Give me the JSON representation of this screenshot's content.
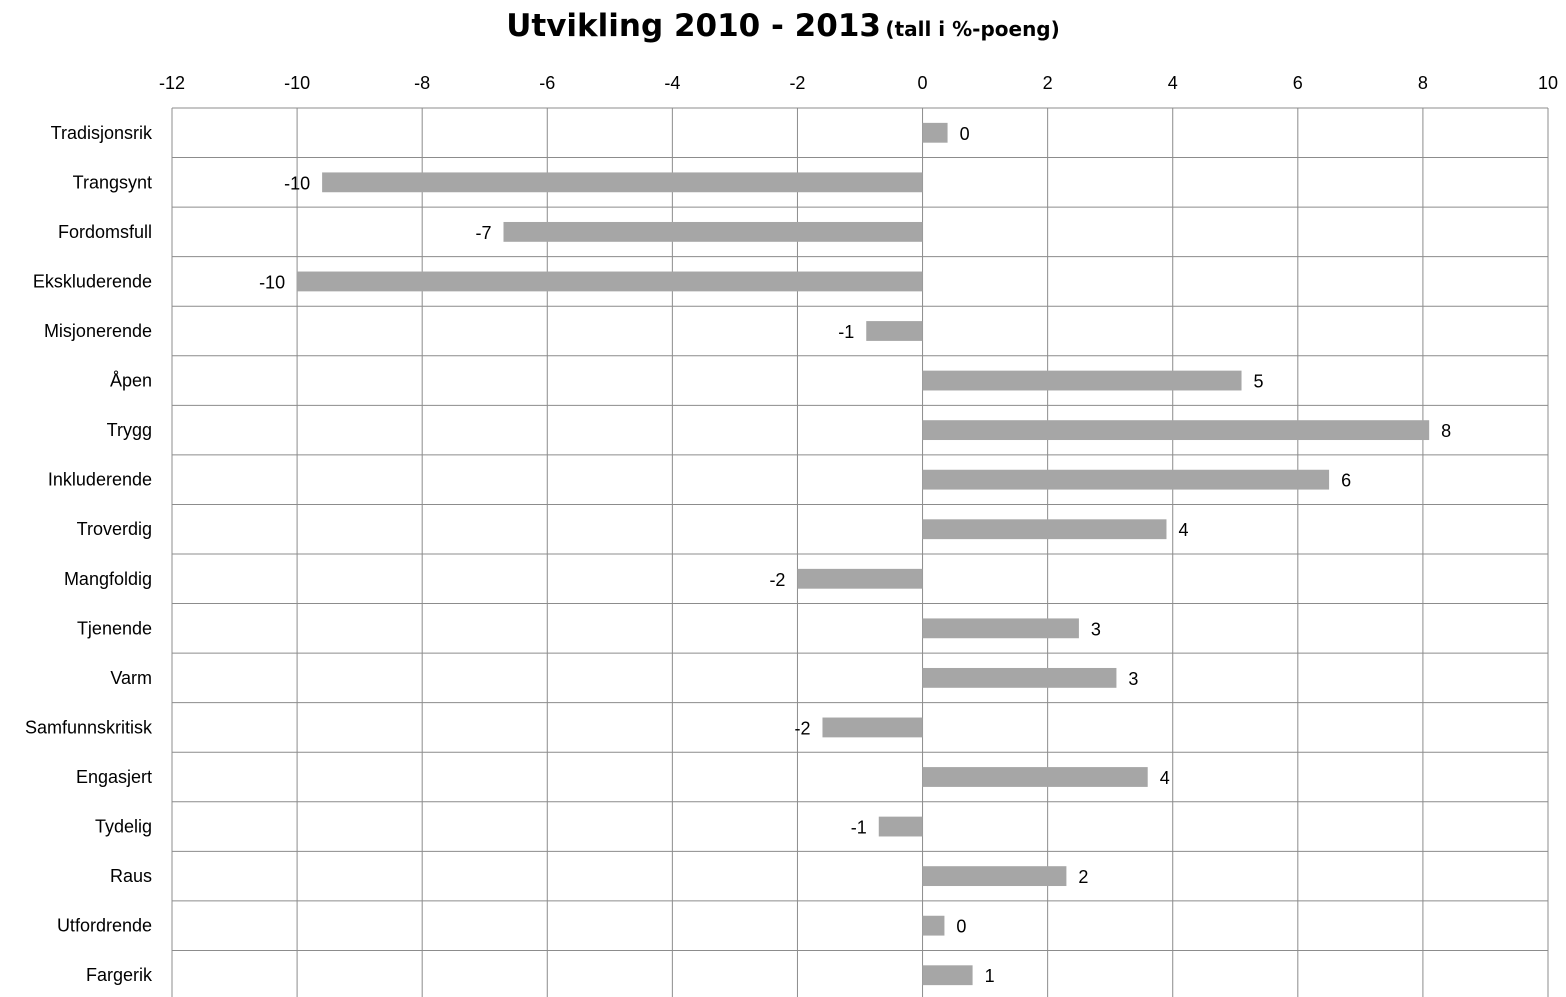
{
  "chart_data": {
    "type": "bar",
    "orientation": "horizontal",
    "title": "Utvikling 2010 - 2013",
    "subtitle": "(tall i %-poeng)",
    "xlim": [
      -12,
      10
    ],
    "xticks": [
      "-12",
      "-10",
      "-8",
      "-6",
      "-4",
      "-2",
      "0",
      "2",
      "4",
      "6",
      "8",
      "10"
    ],
    "x_axis_position": "top",
    "grid": true,
    "bar_color": "#a6a6a6",
    "categories": [
      "Tradisjonsrik",
      "Trangsynt",
      "Fordomsfull",
      "Ekskluderende",
      "Misjonerende",
      "Åpen",
      "Trygg",
      "Inkluderende",
      "Troverdig",
      "Mangfoldig",
      "Tjenende",
      "Varm",
      "Samfunnskritisk",
      "Engasjert",
      "Tydelig",
      "Raus",
      "Utfordrende",
      "Fargerik"
    ],
    "values": [
      0.4,
      -9.6,
      -6.7,
      -10.0,
      -0.9,
      5.1,
      8.1,
      6.5,
      3.9,
      -2.0,
      2.5,
      3.1,
      -1.6,
      3.6,
      -0.7,
      2.3,
      0.35,
      0.8
    ],
    "data_labels": [
      "0",
      "-10",
      "-7",
      "-10",
      "-1",
      "5",
      "8",
      "6",
      "4",
      "-2",
      "3",
      "3",
      "-2",
      "4",
      "-1",
      "2",
      "0",
      "1"
    ]
  }
}
